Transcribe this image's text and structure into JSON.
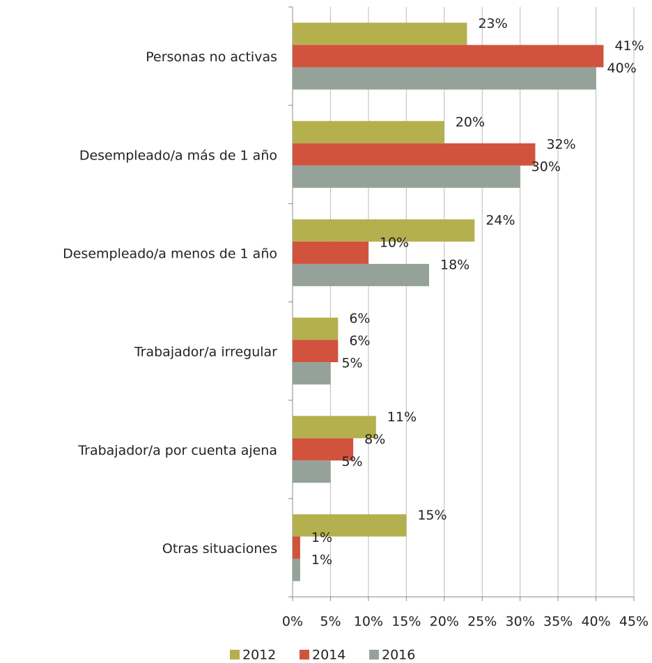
{
  "chart_data": {
    "type": "bar",
    "orientation": "horizontal",
    "categories": [
      "Personas no activas",
      "Desempleado/a más de 1 año",
      "Desempleado/a menos de 1 año",
      "Trabajador/a irregular",
      "Trabajador/a por cuenta ajena",
      "Otras situaciones"
    ],
    "series": [
      {
        "name": "2012",
        "color": "#b5b04e",
        "values": [
          23,
          20,
          24,
          6,
          11,
          15
        ],
        "value_labels": [
          "23%",
          "20%",
          "24%",
          "6%",
          "11%",
          "15%"
        ]
      },
      {
        "name": "2014",
        "color": "#d1533d",
        "values": [
          41,
          32,
          10,
          6,
          8,
          1
        ],
        "value_labels": [
          "41%",
          "32%",
          "10%",
          "6%",
          "8%",
          "1%"
        ]
      },
      {
        "name": "2016",
        "color": "#95a29a",
        "values": [
          40,
          30,
          18,
          5,
          5,
          1
        ],
        "value_labels": [
          "40%",
          "30%",
          "18%",
          "5%",
          "5%",
          "1%"
        ]
      }
    ],
    "xlim": [
      0,
      45
    ],
    "xticks": [
      {
        "value": 0,
        "label": "0%"
      },
      {
        "value": 5,
        "label": "5%"
      },
      {
        "value": 10,
        "label": "10%"
      },
      {
        "value": 15,
        "label": "15%"
      },
      {
        "value": 20,
        "label": "20%"
      },
      {
        "value": 25,
        "label": "25%"
      },
      {
        "value": 30,
        "label": "30%"
      },
      {
        "value": 35,
        "label": "35%"
      },
      {
        "value": 40,
        "label": "40%"
      },
      {
        "value": 45,
        "label": "45%"
      }
    ],
    "grid": true,
    "legend": "bottom"
  }
}
